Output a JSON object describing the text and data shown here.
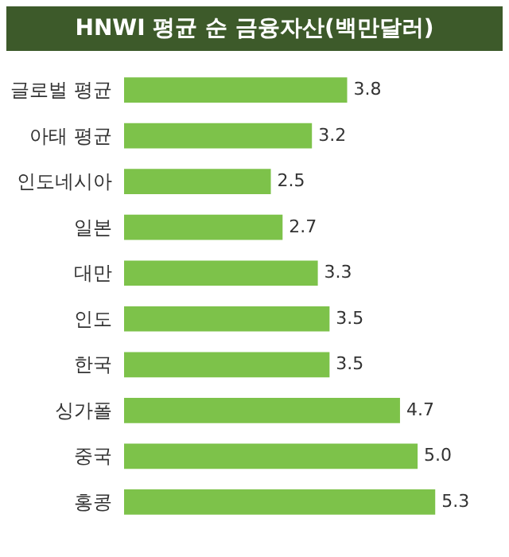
{
  "chart_data": {
    "type": "bar",
    "orientation": "horizontal",
    "title": "HNWI 평균 순 금융자산(백만달러)",
    "categories": [
      "글로벌 평균",
      "아태 평균",
      "인도네시아",
      "일본",
      "대만",
      "인도",
      "한국",
      "싱가폴",
      "중국",
      "홍콩"
    ],
    "values": [
      3.8,
      3.2,
      2.5,
      2.7,
      3.3,
      3.5,
      3.5,
      4.7,
      5.0,
      5.3
    ],
    "value_labels": [
      "3.8",
      "3.2",
      "2.5",
      "2.7",
      "3.3",
      "3.5",
      "3.5",
      "4.7",
      "5.0",
      "5.3"
    ],
    "color": "#7dc24a",
    "tick_labels": "y"
  }
}
